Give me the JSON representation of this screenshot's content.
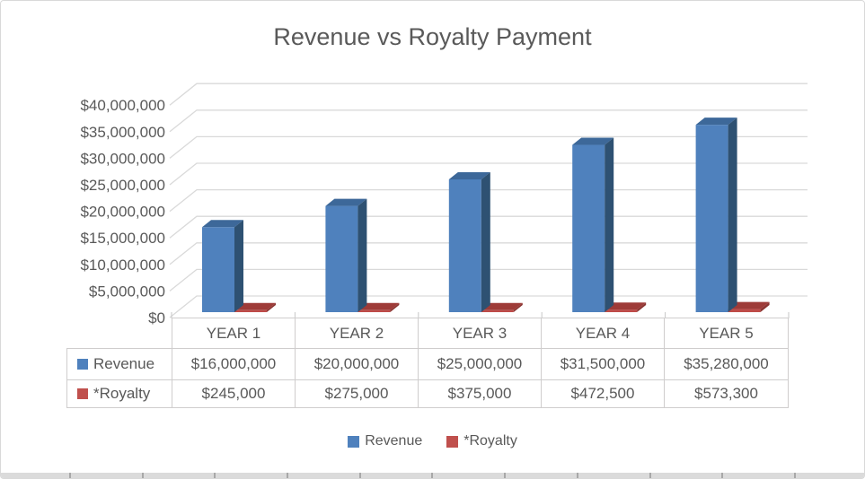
{
  "title": "Revenue vs Royalty Payment",
  "chart_data": {
    "type": "bar",
    "projection": "3d",
    "title": "Revenue vs Royalty Payment",
    "categories": [
      "YEAR 1",
      "YEAR 2",
      "YEAR 3",
      "YEAR 4",
      "YEAR 5"
    ],
    "series": [
      {
        "name": "Revenue",
        "color": "#4F81BD",
        "values": [
          16000000,
          20000000,
          25000000,
          31500000,
          35280000
        ],
        "value_labels": [
          "$16,000,000",
          "$20,000,000",
          "$25,000,000",
          "$31,500,000",
          "$35,280,000"
        ]
      },
      {
        "name": "*Royalty",
        "color": "#C0504D",
        "values": [
          245000,
          275000,
          375000,
          472500,
          573300
        ],
        "value_labels": [
          "$245,000",
          "$275,000",
          "$375,000",
          "$472,500",
          "$573,300"
        ]
      }
    ],
    "ylim": [
      0,
      40000000
    ],
    "y_tick_step": 5000000,
    "y_tick_labels": [
      "$0",
      "$5,000,000",
      "$10,000,000",
      "$15,000,000",
      "$20,000,000",
      "$25,000,000",
      "$30,000,000",
      "$35,000,000",
      "$40,000,000"
    ],
    "grid": true,
    "legend_position": "bottom",
    "data_table": true
  },
  "legend": {
    "items": [
      {
        "label": "Revenue",
        "color": "#4F81BD"
      },
      {
        "label": "*Royalty",
        "color": "#C0504D"
      }
    ]
  },
  "colors": {
    "blue_front": "#4F81BD",
    "blue_top": "#3D6899",
    "blue_side": "#2E5172",
    "red_front": "#BE4B48",
    "red_top": "#9E3B38",
    "red_side": "#8B3431",
    "gridline": "#D9D9D9",
    "tick": "#C6C6C6",
    "text": "#595959",
    "table_border": "#CFCDCD",
    "strip_bg": "#DBDBDB",
    "strip_tick": "#A8A8A8"
  }
}
